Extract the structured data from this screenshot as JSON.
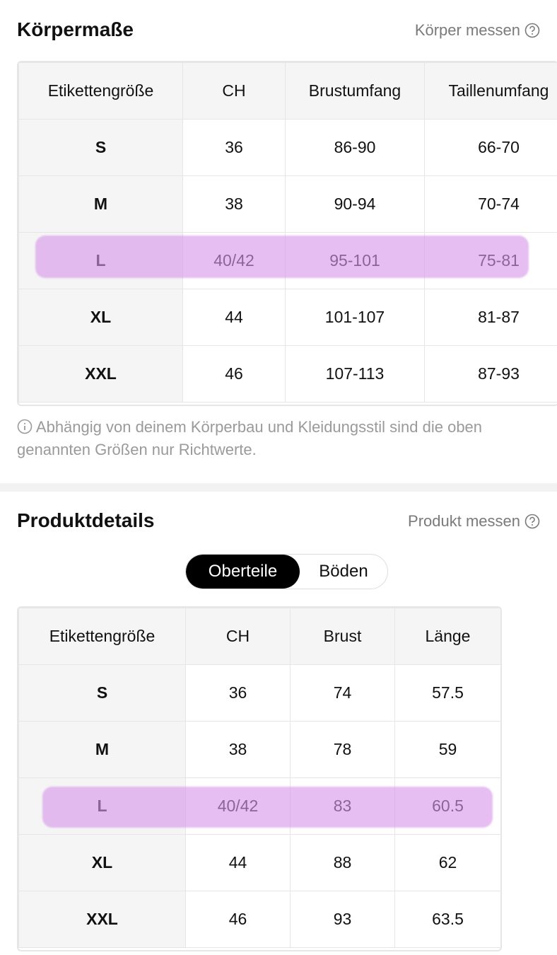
{
  "body_section": {
    "title": "Körpermaße",
    "link": "Körper messen",
    "table": {
      "header": [
        "Etikettengröße",
        "CH",
        "Brustumfang",
        "Taillenumfang"
      ],
      "rows": [
        [
          "S",
          "36",
          "86-90",
          "66-70"
        ],
        [
          "M",
          "38",
          "90-94",
          "70-74"
        ],
        [
          "L",
          "40/42",
          "95-101",
          "75-81"
        ],
        [
          "XL",
          "44",
          "101-107",
          "81-87"
        ],
        [
          "XXL",
          "46",
          "107-113",
          "87-93"
        ]
      ]
    },
    "note": "Abhängig von deinem Körperbau und Kleidungsstil sind die oben genannten Größen nur Richtwerte."
  },
  "product_section": {
    "title": "Produktdetails",
    "link": "Produkt messen",
    "tabs": [
      "Oberteile",
      "Böden"
    ],
    "table": {
      "header": [
        "Etikettengröße",
        "CH",
        "Brust",
        "Länge"
      ],
      "rows": [
        [
          "S",
          "36",
          "74",
          "57.5"
        ],
        [
          "M",
          "38",
          "78",
          "59"
        ],
        [
          "L",
          "40/42",
          "83",
          "60.5"
        ],
        [
          "XL",
          "44",
          "88",
          "62"
        ],
        [
          "XXL",
          "46",
          "93",
          "63.5"
        ]
      ]
    }
  }
}
